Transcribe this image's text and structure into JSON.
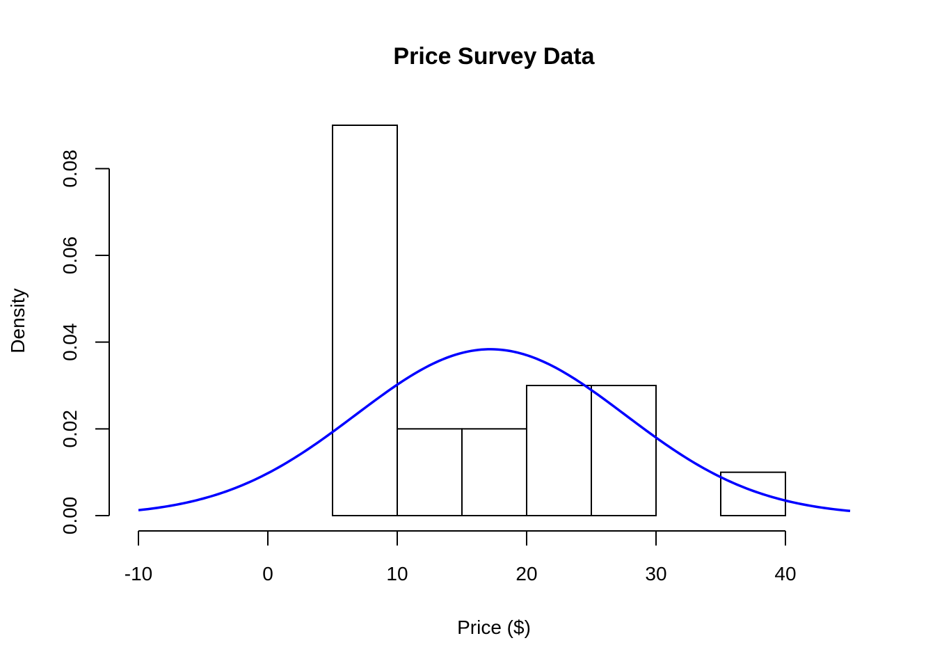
{
  "chart_data": {
    "type": "bar",
    "title": "Price Survey Data",
    "xlabel": "Price ($)",
    "ylabel": "Density",
    "xlim": [
      -10,
      45
    ],
    "ylim": [
      0,
      0.09
    ],
    "x_ticks": [
      -10,
      0,
      10,
      20,
      30,
      40
    ],
    "x_tick_labels": [
      "-10",
      "0",
      "10",
      "20",
      "30",
      "40"
    ],
    "y_ticks": [
      0,
      0.02,
      0.04,
      0.06,
      0.08
    ],
    "y_tick_labels": [
      "0.00",
      "0.02",
      "0.04",
      "0.06",
      "0.08"
    ],
    "grid": false,
    "bins": [
      {
        "start": 5,
        "end": 10,
        "density": 0.09
      },
      {
        "start": 10,
        "end": 15,
        "density": 0.02
      },
      {
        "start": 15,
        "end": 20,
        "density": 0.02
      },
      {
        "start": 20,
        "end": 25,
        "density": 0.03
      },
      {
        "start": 25,
        "end": 30,
        "density": 0.03
      },
      {
        "start": 30,
        "end": 35,
        "density": 0.0
      },
      {
        "start": 35,
        "end": 40,
        "density": 0.01
      }
    ],
    "normal_curve": {
      "mean": 17.2,
      "sd": 10.4,
      "x_range": [
        -10,
        45
      ],
      "color": "#0000ff"
    }
  }
}
